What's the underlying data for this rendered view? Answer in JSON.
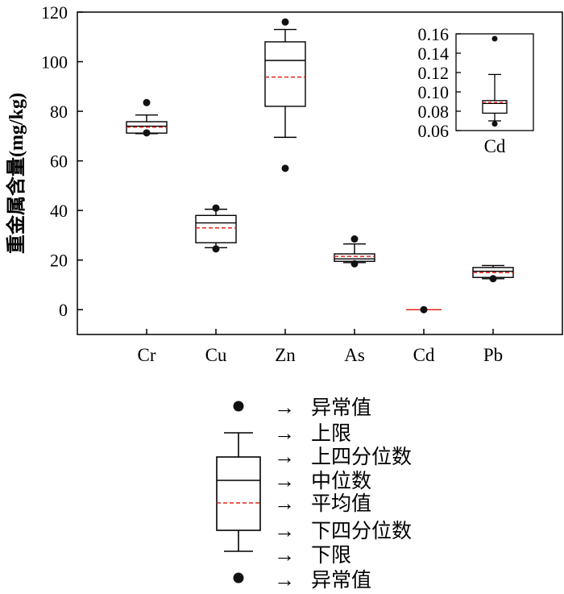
{
  "chart_data": [
    {
      "type": "box",
      "ylabel": "重金属含量(mg/kg)",
      "ylim": [
        -10,
        120
      ],
      "yticks": [
        0,
        20,
        40,
        60,
        80,
        100,
        120
      ],
      "categories": [
        "Cr",
        "Cu",
        "Zn",
        "As",
        "Cd",
        "Pb"
      ],
      "boxes": [
        {
          "name": "Cr",
          "upper_whisker": 78.5,
          "q3": 75.8,
          "median": 74.0,
          "mean": 73.6,
          "q1": 71.2,
          "lower_whisker": 71.0,
          "outliers": [
            83.5,
            71.3
          ]
        },
        {
          "name": "Cu",
          "upper_whisker": 40.5,
          "q3": 38.0,
          "median": 35.0,
          "mean": 33.0,
          "q1": 27.0,
          "lower_whisker": 25.0,
          "outliers": [
            41.0,
            24.5
          ]
        },
        {
          "name": "Zn",
          "upper_whisker": 113.0,
          "q3": 108.0,
          "median": 100.5,
          "mean": 93.8,
          "q1": 82.0,
          "lower_whisker": 69.5,
          "outliers": [
            116.0,
            57.0
          ]
        },
        {
          "name": "As",
          "upper_whisker": 26.5,
          "q3": 22.5,
          "median": 20.5,
          "mean": 21.5,
          "q1": 19.5,
          "lower_whisker": 19.0,
          "outliers": [
            28.5,
            18.5
          ]
        },
        {
          "name": "Cd",
          "upper_whisker": 0.12,
          "q3": 0.09,
          "median": 0.089,
          "mean": 0.089,
          "q1": 0.078,
          "lower_whisker": 0.068,
          "outliers": [
            0.0
          ]
        },
        {
          "name": "Pb",
          "upper_whisker": 17.8,
          "q3": 17.0,
          "median": 15.5,
          "mean": 15.0,
          "q1": 13.0,
          "lower_whisker": 12.5,
          "outliers": [
            12.5
          ]
        }
      ]
    },
    {
      "type": "box",
      "inset": true,
      "ylim": [
        0.06,
        0.16
      ],
      "yticks": [
        0.06,
        0.08,
        0.1,
        0.12,
        0.14,
        0.16
      ],
      "ytick_labels": [
        "0.06",
        "0.08",
        "0.10",
        "0.12",
        "0.14",
        "0.16"
      ],
      "categories": [
        "Cd"
      ],
      "boxes": [
        {
          "name": "Cd",
          "upper_whisker": 0.118,
          "q3": 0.091,
          "median": 0.088,
          "mean": 0.089,
          "q1": 0.078,
          "lower_whisker": 0.07,
          "outliers": [
            0.155,
            0.067
          ]
        }
      ]
    }
  ],
  "legend": {
    "items": [
      {
        "arrow": "→",
        "label": "异常值"
      },
      {
        "arrow": "→",
        "label": "上限"
      },
      {
        "arrow": "→",
        "label": "上四分位数"
      },
      {
        "arrow": "→",
        "label": "中位数"
      },
      {
        "arrow": "→",
        "label": "平均值"
      },
      {
        "arrow": "→",
        "label": "下四分位数"
      },
      {
        "arrow": "→",
        "label": "下限"
      },
      {
        "arrow": "→",
        "label": "异常值"
      }
    ]
  },
  "colors": {
    "box": "#000000",
    "mean": "#e0261b",
    "outlier": "#111111"
  }
}
